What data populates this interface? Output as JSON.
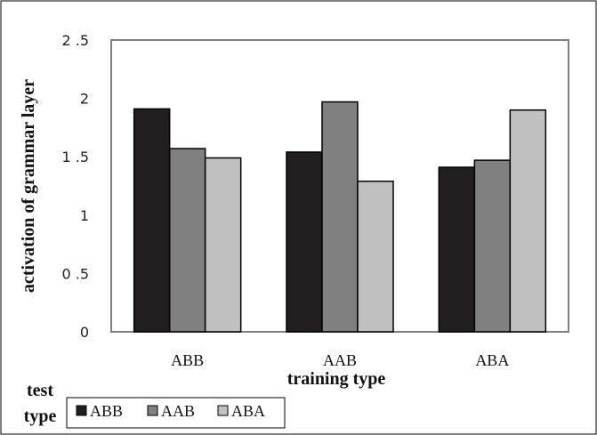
{
  "chart_data": {
    "type": "bar",
    "categories": [
      "ABB",
      "AAB",
      "ABA"
    ],
    "series": [
      {
        "name": "ABB",
        "values": [
          1.91,
          1.54,
          1.41
        ]
      },
      {
        "name": "AAB",
        "values": [
          1.57,
          1.97,
          1.47
        ]
      },
      {
        "name": "ABA",
        "values": [
          1.49,
          1.29,
          1.9
        ]
      }
    ],
    "title": "",
    "xlabel": "training type",
    "ylabel": "activation of grammar layer",
    "ylim": [
      0,
      2.5
    ],
    "yticks": [
      "0",
      "0 .5",
      "1",
      "1 .5",
      "2",
      "2 .5"
    ],
    "ytick_values": [
      0,
      0.5,
      1,
      1.5,
      2,
      2.5
    ],
    "legend_title_line1": "test",
    "legend_title_line2": "type",
    "legend_placement": "bottom-left",
    "grid": false,
    "colors": [
      "#231f20",
      "#808080",
      "#c0c0c0"
    ]
  }
}
